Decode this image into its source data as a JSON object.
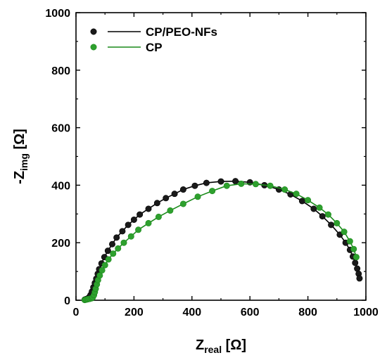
{
  "chart_data": {
    "type": "scatter",
    "xlabel": {
      "main": "Z",
      "sub": "real",
      "unit": " [Ω]"
    },
    "ylabel": {
      "prefix": "-Z",
      "sub": "img",
      "unit": " [Ω]"
    },
    "xlim": [
      0,
      1000
    ],
    "ylim": [
      0,
      1000
    ],
    "x_ticks": [
      0,
      200,
      400,
      600,
      800,
      1000
    ],
    "y_ticks": [
      0,
      200,
      400,
      600,
      800,
      1000
    ],
    "legend_position": "top-left",
    "grid": false,
    "series": [
      {
        "name": "CP/PEO-NFs",
        "color": "#000000",
        "marker_color": "#1a1a1a",
        "points": [
          [
            30,
            2
          ],
          [
            35,
            4
          ],
          [
            40,
            6
          ],
          [
            45,
            10
          ],
          [
            50,
            18
          ],
          [
            55,
            30
          ],
          [
            60,
            45
          ],
          [
            65,
            60
          ],
          [
            70,
            75
          ],
          [
            75,
            92
          ],
          [
            80,
            108
          ],
          [
            88,
            128
          ],
          [
            98,
            150
          ],
          [
            110,
            172
          ],
          [
            125,
            195
          ],
          [
            140,
            218
          ],
          [
            160,
            240
          ],
          [
            180,
            262
          ],
          [
            200,
            280
          ],
          [
            220,
            298
          ],
          [
            250,
            318
          ],
          [
            280,
            338
          ],
          [
            310,
            355
          ],
          [
            340,
            370
          ],
          [
            370,
            385
          ],
          [
            410,
            398
          ],
          [
            450,
            408
          ],
          [
            500,
            413
          ],
          [
            550,
            414
          ],
          [
            600,
            410
          ],
          [
            650,
            400
          ],
          [
            700,
            385
          ],
          [
            740,
            368
          ],
          [
            780,
            345
          ],
          [
            820,
            318
          ],
          [
            850,
            292
          ],
          [
            880,
            262
          ],
          [
            910,
            228
          ],
          [
            930,
            200
          ],
          [
            945,
            175
          ],
          [
            955,
            152
          ],
          [
            963,
            130
          ],
          [
            970,
            110
          ],
          [
            975,
            92
          ],
          [
            978,
            76
          ]
        ]
      },
      {
        "name": "CP",
        "color": "#1a8a1a",
        "marker_color": "#2ea02e",
        "points": [
          [
            30,
            1
          ],
          [
            34,
            2
          ],
          [
            38,
            3
          ],
          [
            42,
            4
          ],
          [
            48,
            5
          ],
          [
            54,
            7
          ],
          [
            58,
            10
          ],
          [
            62,
            18
          ],
          [
            65,
            28
          ],
          [
            68,
            40
          ],
          [
            72,
            55
          ],
          [
            76,
            70
          ],
          [
            82,
            86
          ],
          [
            90,
            104
          ],
          [
            100,
            122
          ],
          [
            112,
            142
          ],
          [
            128,
            162
          ],
          [
            145,
            180
          ],
          [
            165,
            200
          ],
          [
            190,
            222
          ],
          [
            215,
            245
          ],
          [
            250,
            268
          ],
          [
            285,
            290
          ],
          [
            325,
            312
          ],
          [
            370,
            335
          ],
          [
            420,
            360
          ],
          [
            470,
            380
          ],
          [
            520,
            398
          ],
          [
            570,
            405
          ],
          [
            620,
            404
          ],
          [
            670,
            398
          ],
          [
            720,
            385
          ],
          [
            760,
            370
          ],
          [
            800,
            348
          ],
          [
            840,
            322
          ],
          [
            870,
            298
          ],
          [
            900,
            268
          ],
          [
            925,
            238
          ],
          [
            945,
            205
          ],
          [
            958,
            178
          ],
          [
            967,
            150
          ]
        ]
      }
    ]
  }
}
